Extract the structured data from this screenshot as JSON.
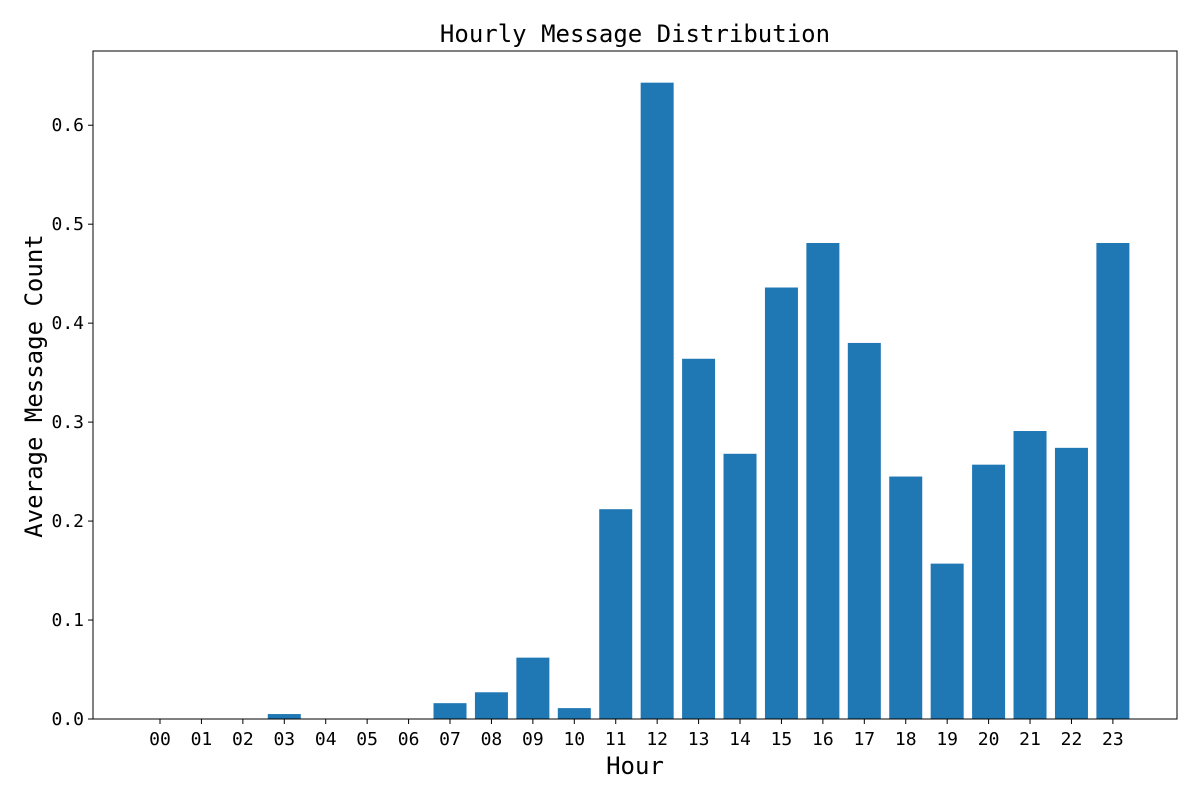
{
  "chart_data": {
    "type": "bar",
    "title": "Hourly Message Distribution",
    "xlabel": "Hour",
    "ylabel": "Average Message Count",
    "categories": [
      "00",
      "01",
      "02",
      "03",
      "04",
      "05",
      "06",
      "07",
      "08",
      "09",
      "10",
      "11",
      "12",
      "13",
      "14",
      "15",
      "16",
      "17",
      "18",
      "19",
      "20",
      "21",
      "22",
      "23"
    ],
    "values": [
      0.0,
      0.0,
      0.0,
      0.005,
      0.0,
      0.0,
      0.0,
      0.016,
      0.027,
      0.062,
      0.011,
      0.212,
      0.643,
      0.364,
      0.268,
      0.436,
      0.481,
      0.38,
      0.245,
      0.157,
      0.257,
      0.291,
      0.274,
      0.481
    ],
    "ylim": [
      0,
      0.675
    ],
    "yticks": [
      "0.0",
      "0.1",
      "0.2",
      "0.3",
      "0.4",
      "0.5",
      "0.6"
    ],
    "bar_color": "#1f77b4",
    "grid": false,
    "legend": "none"
  }
}
